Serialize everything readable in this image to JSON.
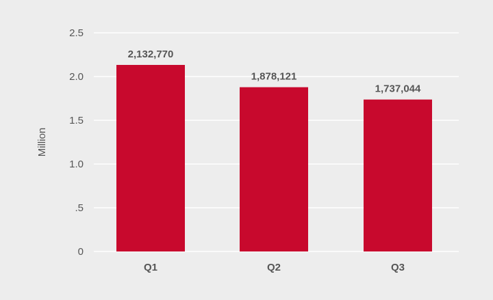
{
  "chart_data": {
    "type": "bar",
    "categories": [
      "Q1",
      "Q2",
      "Q3"
    ],
    "values": [
      2.13277,
      1.878121,
      1.737044
    ],
    "data_labels": [
      "2,132,770",
      "1,878,121",
      "1,737,044"
    ],
    "ylabel": "Million",
    "xlabel": "",
    "ylim": [
      0,
      2.5
    ],
    "yticks": [
      0,
      0.5,
      1.0,
      1.5,
      2.0,
      2.5
    ],
    "ytick_labels": [
      "0",
      ".5",
      "1.0",
      "1.5",
      "2.0",
      "2.5"
    ],
    "grid": true,
    "legend": "none"
  },
  "colors": {
    "bar": "#c8092d",
    "gridline": "#ffffff",
    "background": "#ededed",
    "text": "#555555"
  }
}
